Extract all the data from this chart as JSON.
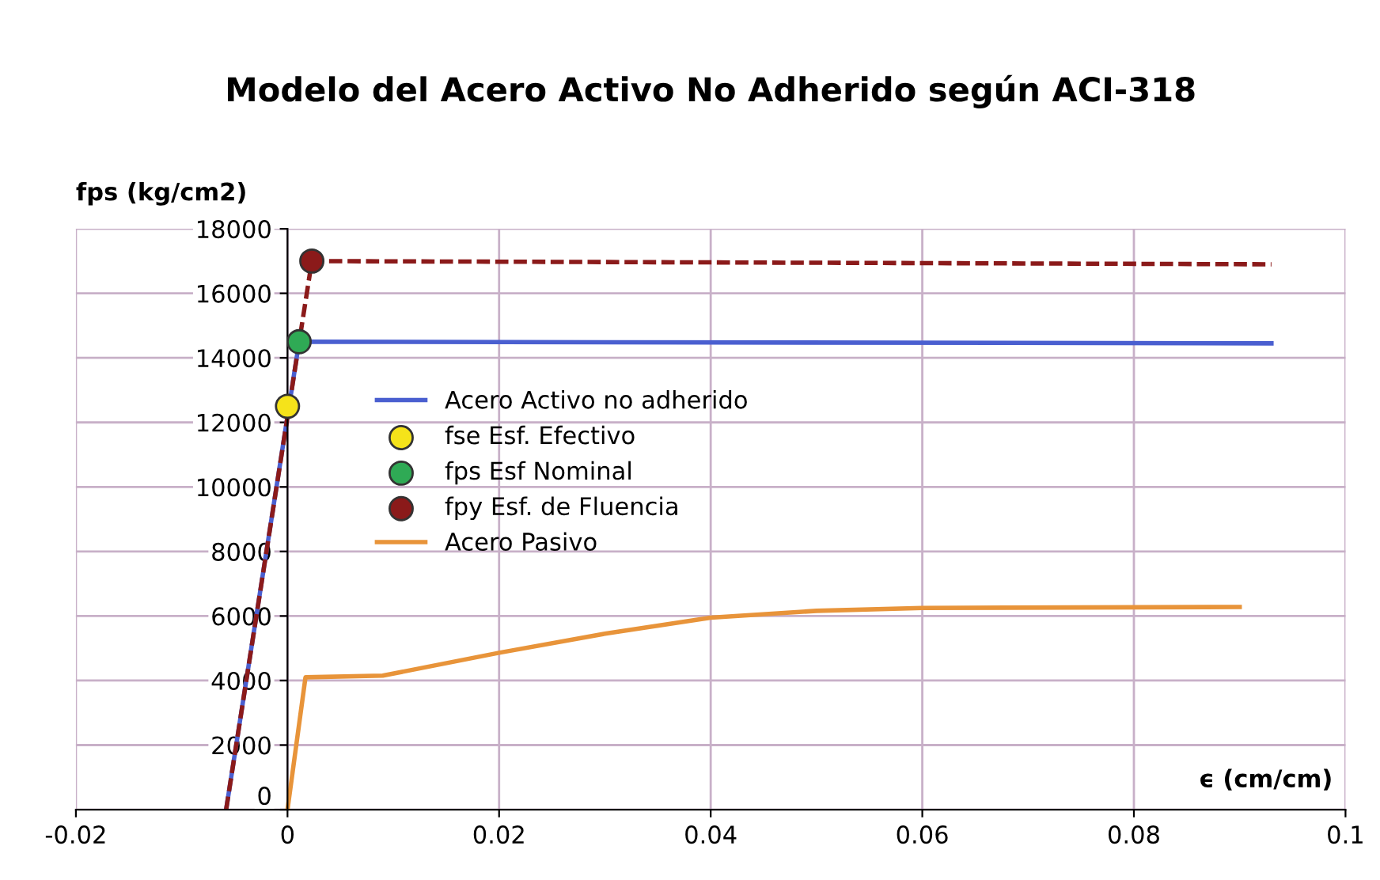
{
  "chart_data": {
    "type": "line",
    "title": "Modelo del Acero Activo No Adherido según ACI-318",
    "ylabel": "fps (kg/cm2)",
    "xlabel": "ϵ (cm/cm)",
    "xlim": [
      -0.02,
      0.1
    ],
    "xticks": [
      -0.02,
      0,
      0.02,
      0.04,
      0.06,
      0.08,
      0.1
    ],
    "ylim": [
      0,
      18000
    ],
    "yticks": [
      0,
      2000,
      4000,
      6000,
      8000,
      10000,
      12000,
      14000,
      16000,
      18000
    ],
    "grid": true,
    "legend": "left",
    "series": [
      {
        "name": "Acero Activo no adherido",
        "color": "#4a5fd0",
        "x": [
          -0.0058,
          0.0011,
          0.093
        ],
        "values": [
          0,
          14500,
          14450
        ]
      },
      {
        "type": "line",
        "color": "#8b1a1a",
        "line_style": "dashed",
        "x": [
          -0.0058,
          0.0023,
          0.093
        ],
        "values": [
          0,
          17000,
          16900
        ]
      },
      {
        "name": "fse Esf. Efectivo",
        "type": "scatter",
        "color": "#f5e31a",
        "x": [
          0.0
        ],
        "values": [
          12500
        ]
      },
      {
        "name": "fps Esf Nominal",
        "type": "scatter",
        "color": "#2faa55",
        "x": [
          0.0011
        ],
        "values": [
          14500
        ]
      },
      {
        "name": "fpy Esf. de Fluencia",
        "type": "scatter",
        "color": "#8b1a1a",
        "x": [
          0.0023
        ],
        "values": [
          17000
        ]
      },
      {
        "name": "Acero Pasivo",
        "color": "#e8943a",
        "x": [
          0.0,
          0.0017,
          0.009,
          0.02,
          0.03,
          0.04,
          0.05,
          0.06,
          0.09
        ],
        "values": [
          0,
          4100,
          4150,
          4860,
          5450,
          5950,
          6160,
          6250,
          6280
        ]
      }
    ]
  }
}
